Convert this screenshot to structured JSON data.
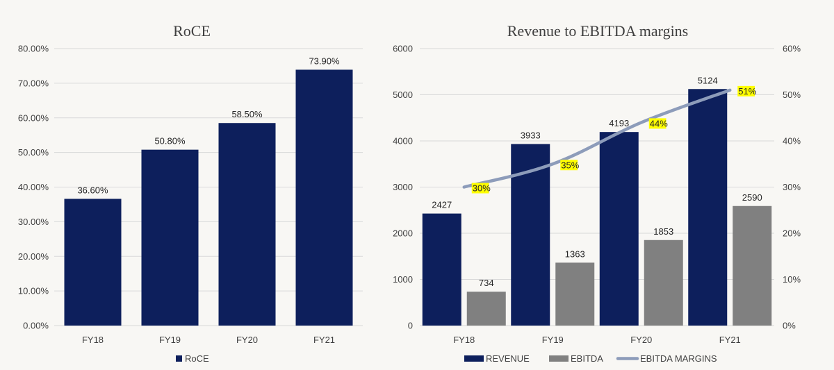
{
  "colors": {
    "navy": "#0d1f5c",
    "gray": "#808080",
    "line": "#8d9cba",
    "highlight": "#ffff00",
    "grid": "#d9d9d9"
  },
  "chart_data": [
    {
      "type": "bar",
      "title": "RoCE",
      "categories": [
        "FY18",
        "FY19",
        "FY20",
        "FY21"
      ],
      "series": [
        {
          "name": "RoCE",
          "values": [
            36.6,
            50.8,
            58.5,
            73.9
          ],
          "data_labels": [
            "36.60%",
            "50.80%",
            "58.50%",
            "73.90%"
          ]
        }
      ],
      "ylim": [
        0,
        80
      ],
      "yticks": [
        "0.00%",
        "10.00%",
        "20.00%",
        "30.00%",
        "40.00%",
        "50.00%",
        "60.00%",
        "70.00%",
        "80.00%"
      ],
      "grid": true,
      "legend_position": "bottom"
    },
    {
      "type": "bar",
      "title": "Revenue to EBITDA margins",
      "categories": [
        "FY18",
        "FY19",
        "FY20",
        "FY21"
      ],
      "series": [
        {
          "name": "REVENUE",
          "values": [
            2427,
            3933,
            4193,
            5124
          ],
          "data_labels": [
            "2427",
            "3933",
            "4193",
            "5124"
          ]
        },
        {
          "name": "EBITDA",
          "values": [
            734,
            1363,
            1853,
            2590
          ],
          "data_labels": [
            "734",
            "1363",
            "1853",
            "2590"
          ]
        },
        {
          "name": "EBITDA MARGINS",
          "type": "line",
          "axis": "secondary",
          "values": [
            30,
            35,
            44,
            51
          ],
          "data_labels": [
            "30%",
            "35%",
            "44%",
            "51%"
          ]
        }
      ],
      "ylim": [
        0,
        6000
      ],
      "yticks": [
        "0",
        "1000",
        "2000",
        "3000",
        "4000",
        "5000",
        "6000"
      ],
      "y2lim": [
        0,
        60
      ],
      "y2ticks": [
        "0%",
        "10%",
        "20%",
        "30%",
        "40%",
        "50%",
        "60%"
      ],
      "grid": true,
      "legend_position": "bottom"
    }
  ]
}
